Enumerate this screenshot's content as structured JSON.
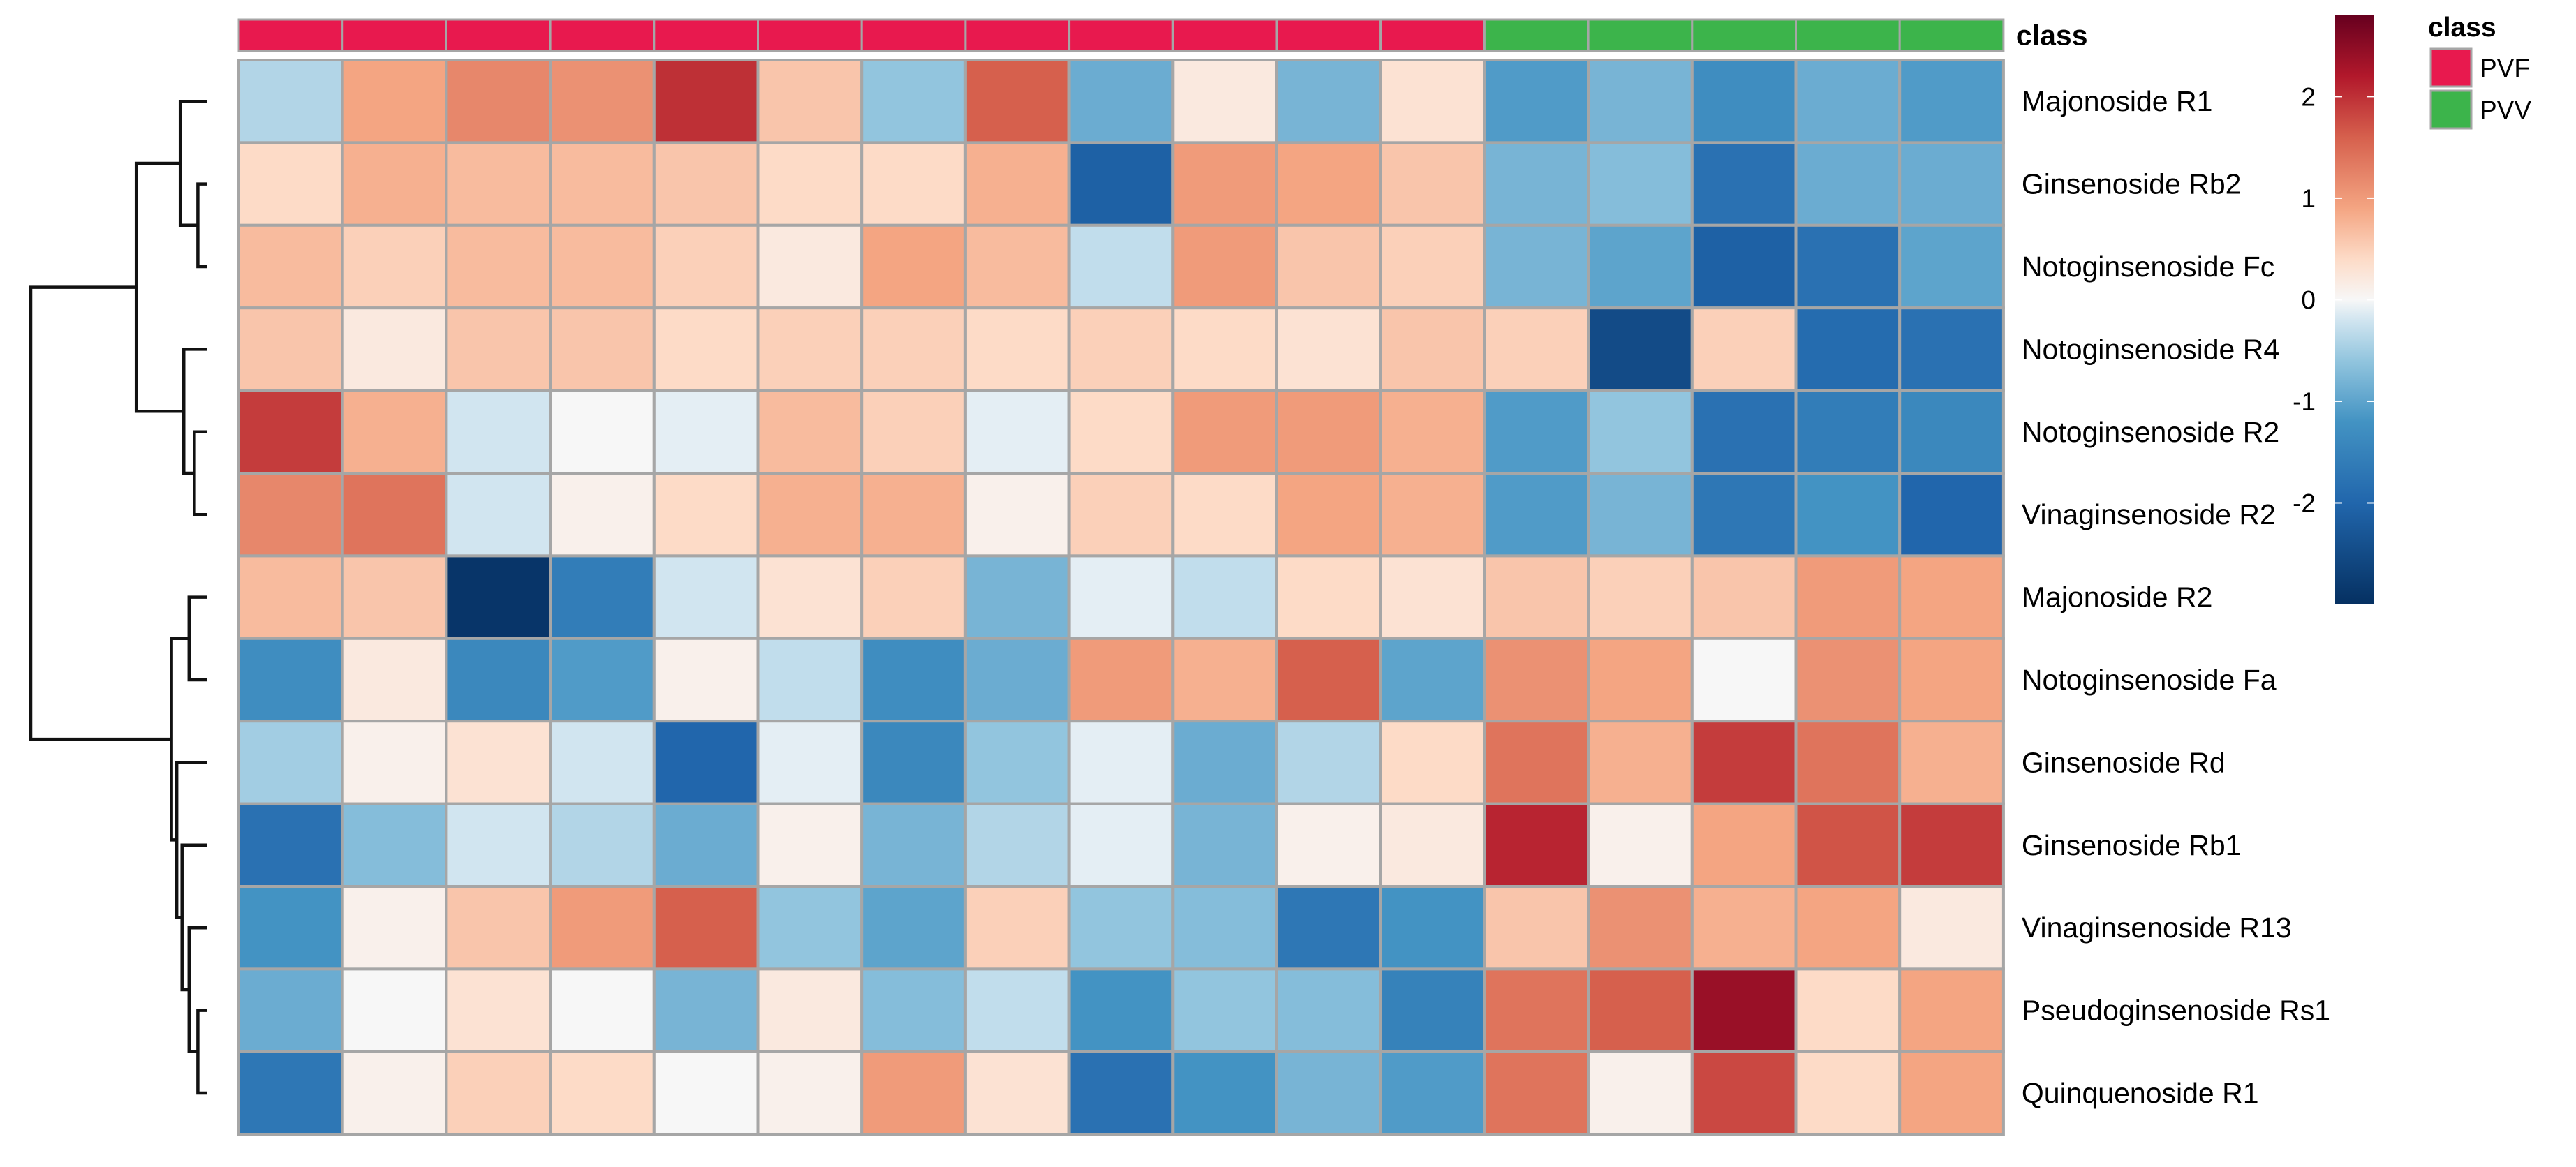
{
  "chart_data": {
    "type": "heatmap",
    "title": "",
    "xlabel": "",
    "ylabel": "",
    "columns": [
      {
        "class": "PVF"
      },
      {
        "class": "PVF"
      },
      {
        "class": "PVF"
      },
      {
        "class": "PVF"
      },
      {
        "class": "PVF"
      },
      {
        "class": "PVF"
      },
      {
        "class": "PVF"
      },
      {
        "class": "PVF"
      },
      {
        "class": "PVF"
      },
      {
        "class": "PVF"
      },
      {
        "class": "PVF"
      },
      {
        "class": "PVF"
      },
      {
        "class": "PVV"
      },
      {
        "class": "PVV"
      },
      {
        "class": "PVV"
      },
      {
        "class": "PVV"
      },
      {
        "class": "PVV"
      }
    ],
    "rows": [
      "Majonoside R1",
      "Ginsenoside Rb2",
      "Notoginsenoside Fc",
      "Notoginsenoside R4",
      "Notoginsenoside R2",
      "Vinaginsenoside R2",
      "Majonoside R2",
      "Notoginsenoside Fa",
      "Ginsenoside Rd",
      "Ginsenoside Rb1",
      "Vinaginsenoside R13",
      "Pseudoginsenoside Rs1",
      "Quinquenoside R1"
    ],
    "values": [
      [
        -0.4,
        0.9,
        1.2,
        1.1,
        2.0,
        0.6,
        -0.6,
        1.6,
        -0.9,
        0.2,
        -0.8,
        0.3,
        -1.1,
        -0.8,
        -1.3,
        -0.9,
        -1.1
      ],
      [
        0.4,
        0.8,
        0.7,
        0.7,
        0.6,
        0.4,
        0.4,
        0.8,
        -2.1,
        1.0,
        0.9,
        0.6,
        -0.8,
        -0.7,
        -1.8,
        -0.9,
        -0.9
      ],
      [
        0.7,
        0.5,
        0.7,
        0.7,
        0.5,
        0.2,
        0.9,
        0.7,
        -0.3,
        1.0,
        0.6,
        0.5,
        -0.8,
        -1.0,
        -2.1,
        -1.8,
        -1.0
      ],
      [
        0.6,
        0.2,
        0.6,
        0.6,
        0.4,
        0.5,
        0.5,
        0.4,
        0.5,
        0.4,
        0.3,
        0.6,
        0.5,
        -2.5,
        0.5,
        -1.9,
        -1.8
      ],
      [
        1.9,
        0.8,
        -0.2,
        0.0,
        -0.1,
        0.7,
        0.5,
        -0.1,
        0.4,
        1.0,
        1.0,
        0.8,
        -1.1,
        -0.6,
        -1.8,
        -1.6,
        -1.4
      ],
      [
        1.2,
        1.4,
        -0.2,
        0.1,
        0.4,
        0.8,
        0.8,
        0.1,
        0.5,
        0.4,
        0.9,
        0.8,
        -1.1,
        -0.8,
        -1.7,
        -1.2,
        -2.0
      ],
      [
        0.7,
        0.6,
        -2.9,
        -1.6,
        -0.2,
        0.3,
        0.5,
        -0.8,
        -0.1,
        -0.3,
        0.4,
        0.3,
        0.6,
        0.5,
        0.6,
        1.0,
        0.9
      ],
      [
        -1.3,
        0.2,
        -1.4,
        -1.1,
        0.1,
        -0.3,
        -1.3,
        -0.9,
        1.0,
        0.8,
        1.6,
        -1.0,
        1.1,
        0.9,
        0.0,
        1.1,
        0.9
      ],
      [
        -0.5,
        0.1,
        0.3,
        -0.2,
        -2.0,
        -0.1,
        -1.4,
        -0.6,
        -0.1,
        -0.9,
        -0.4,
        0.4,
        1.4,
        0.8,
        1.9,
        1.4,
        0.8
      ],
      [
        -1.8,
        -0.7,
        -0.2,
        -0.4,
        -0.9,
        0.1,
        -0.8,
        -0.4,
        -0.1,
        -0.8,
        0.1,
        0.2,
        2.1,
        0.1,
        0.9,
        1.7,
        1.9
      ],
      [
        -1.2,
        0.1,
        0.6,
        1.0,
        1.6,
        -0.6,
        -1.0,
        0.5,
        -0.6,
        -0.7,
        -1.7,
        -1.2,
        0.6,
        1.1,
        0.8,
        0.9,
        0.2
      ],
      [
        -0.9,
        0.0,
        0.3,
        0.0,
        -0.8,
        0.2,
        -0.7,
        -0.3,
        -1.2,
        -0.6,
        -0.7,
        -1.5,
        1.4,
        1.6,
        2.4,
        0.4,
        0.9
      ],
      [
        -1.7,
        0.1,
        0.5,
        0.4,
        0.0,
        0.1,
        1.0,
        0.3,
        -1.8,
        -1.2,
        -0.8,
        -1.1,
        1.4,
        0.1,
        1.8,
        0.4,
        0.9
      ]
    ],
    "color_scale": {
      "min": -3,
      "max": 2.8,
      "stops": [
        {
          "value": -3.0,
          "color": "#053061"
        },
        {
          "value": -2.0,
          "color": "#2166ac"
        },
        {
          "value": -1.2,
          "color": "#4393c3"
        },
        {
          "value": -0.6,
          "color": "#92c5de"
        },
        {
          "value": -0.2,
          "color": "#d1e5f0"
        },
        {
          "value": 0.0,
          "color": "#f7f7f7"
        },
        {
          "value": 0.4,
          "color": "#fddbc7"
        },
        {
          "value": 0.9,
          "color": "#f4a582"
        },
        {
          "value": 1.6,
          "color": "#d6604d"
        },
        {
          "value": 2.2,
          "color": "#b2182b"
        },
        {
          "value": 2.8,
          "color": "#67001f"
        }
      ],
      "ticks": [
        {
          "value": 2,
          "label": "2"
        },
        {
          "value": 1,
          "label": "1"
        },
        {
          "value": 0,
          "label": "0"
        },
        {
          "value": -1,
          "label": "-1"
        },
        {
          "value": -2,
          "label": "-2"
        }
      ]
    },
    "annotation": {
      "title": "class",
      "legend_title": "class",
      "classes": [
        {
          "name": "PVF",
          "color": "#e8194e"
        },
        {
          "name": "PVV",
          "color": "#3cb44b"
        }
      ]
    },
    "dendrogram": {
      "side": "left",
      "merges": [
        [
          1,
          2,
          0.05
        ],
        [
          0,
          13,
          0.15
        ],
        [
          4,
          5,
          0.07
        ],
        [
          3,
          15,
          0.13
        ],
        [
          14,
          16,
          0.4
        ],
        [
          11,
          12,
          0.05
        ],
        [
          10,
          18,
          0.1
        ],
        [
          9,
          19,
          0.14
        ],
        [
          8,
          20,
          0.17
        ],
        [
          6,
          7,
          0.1
        ],
        [
          22,
          21,
          0.2
        ],
        [
          17,
          23,
          1.0
        ]
      ]
    },
    "cell_border_color": "#a6a6a6",
    "grid": false
  }
}
